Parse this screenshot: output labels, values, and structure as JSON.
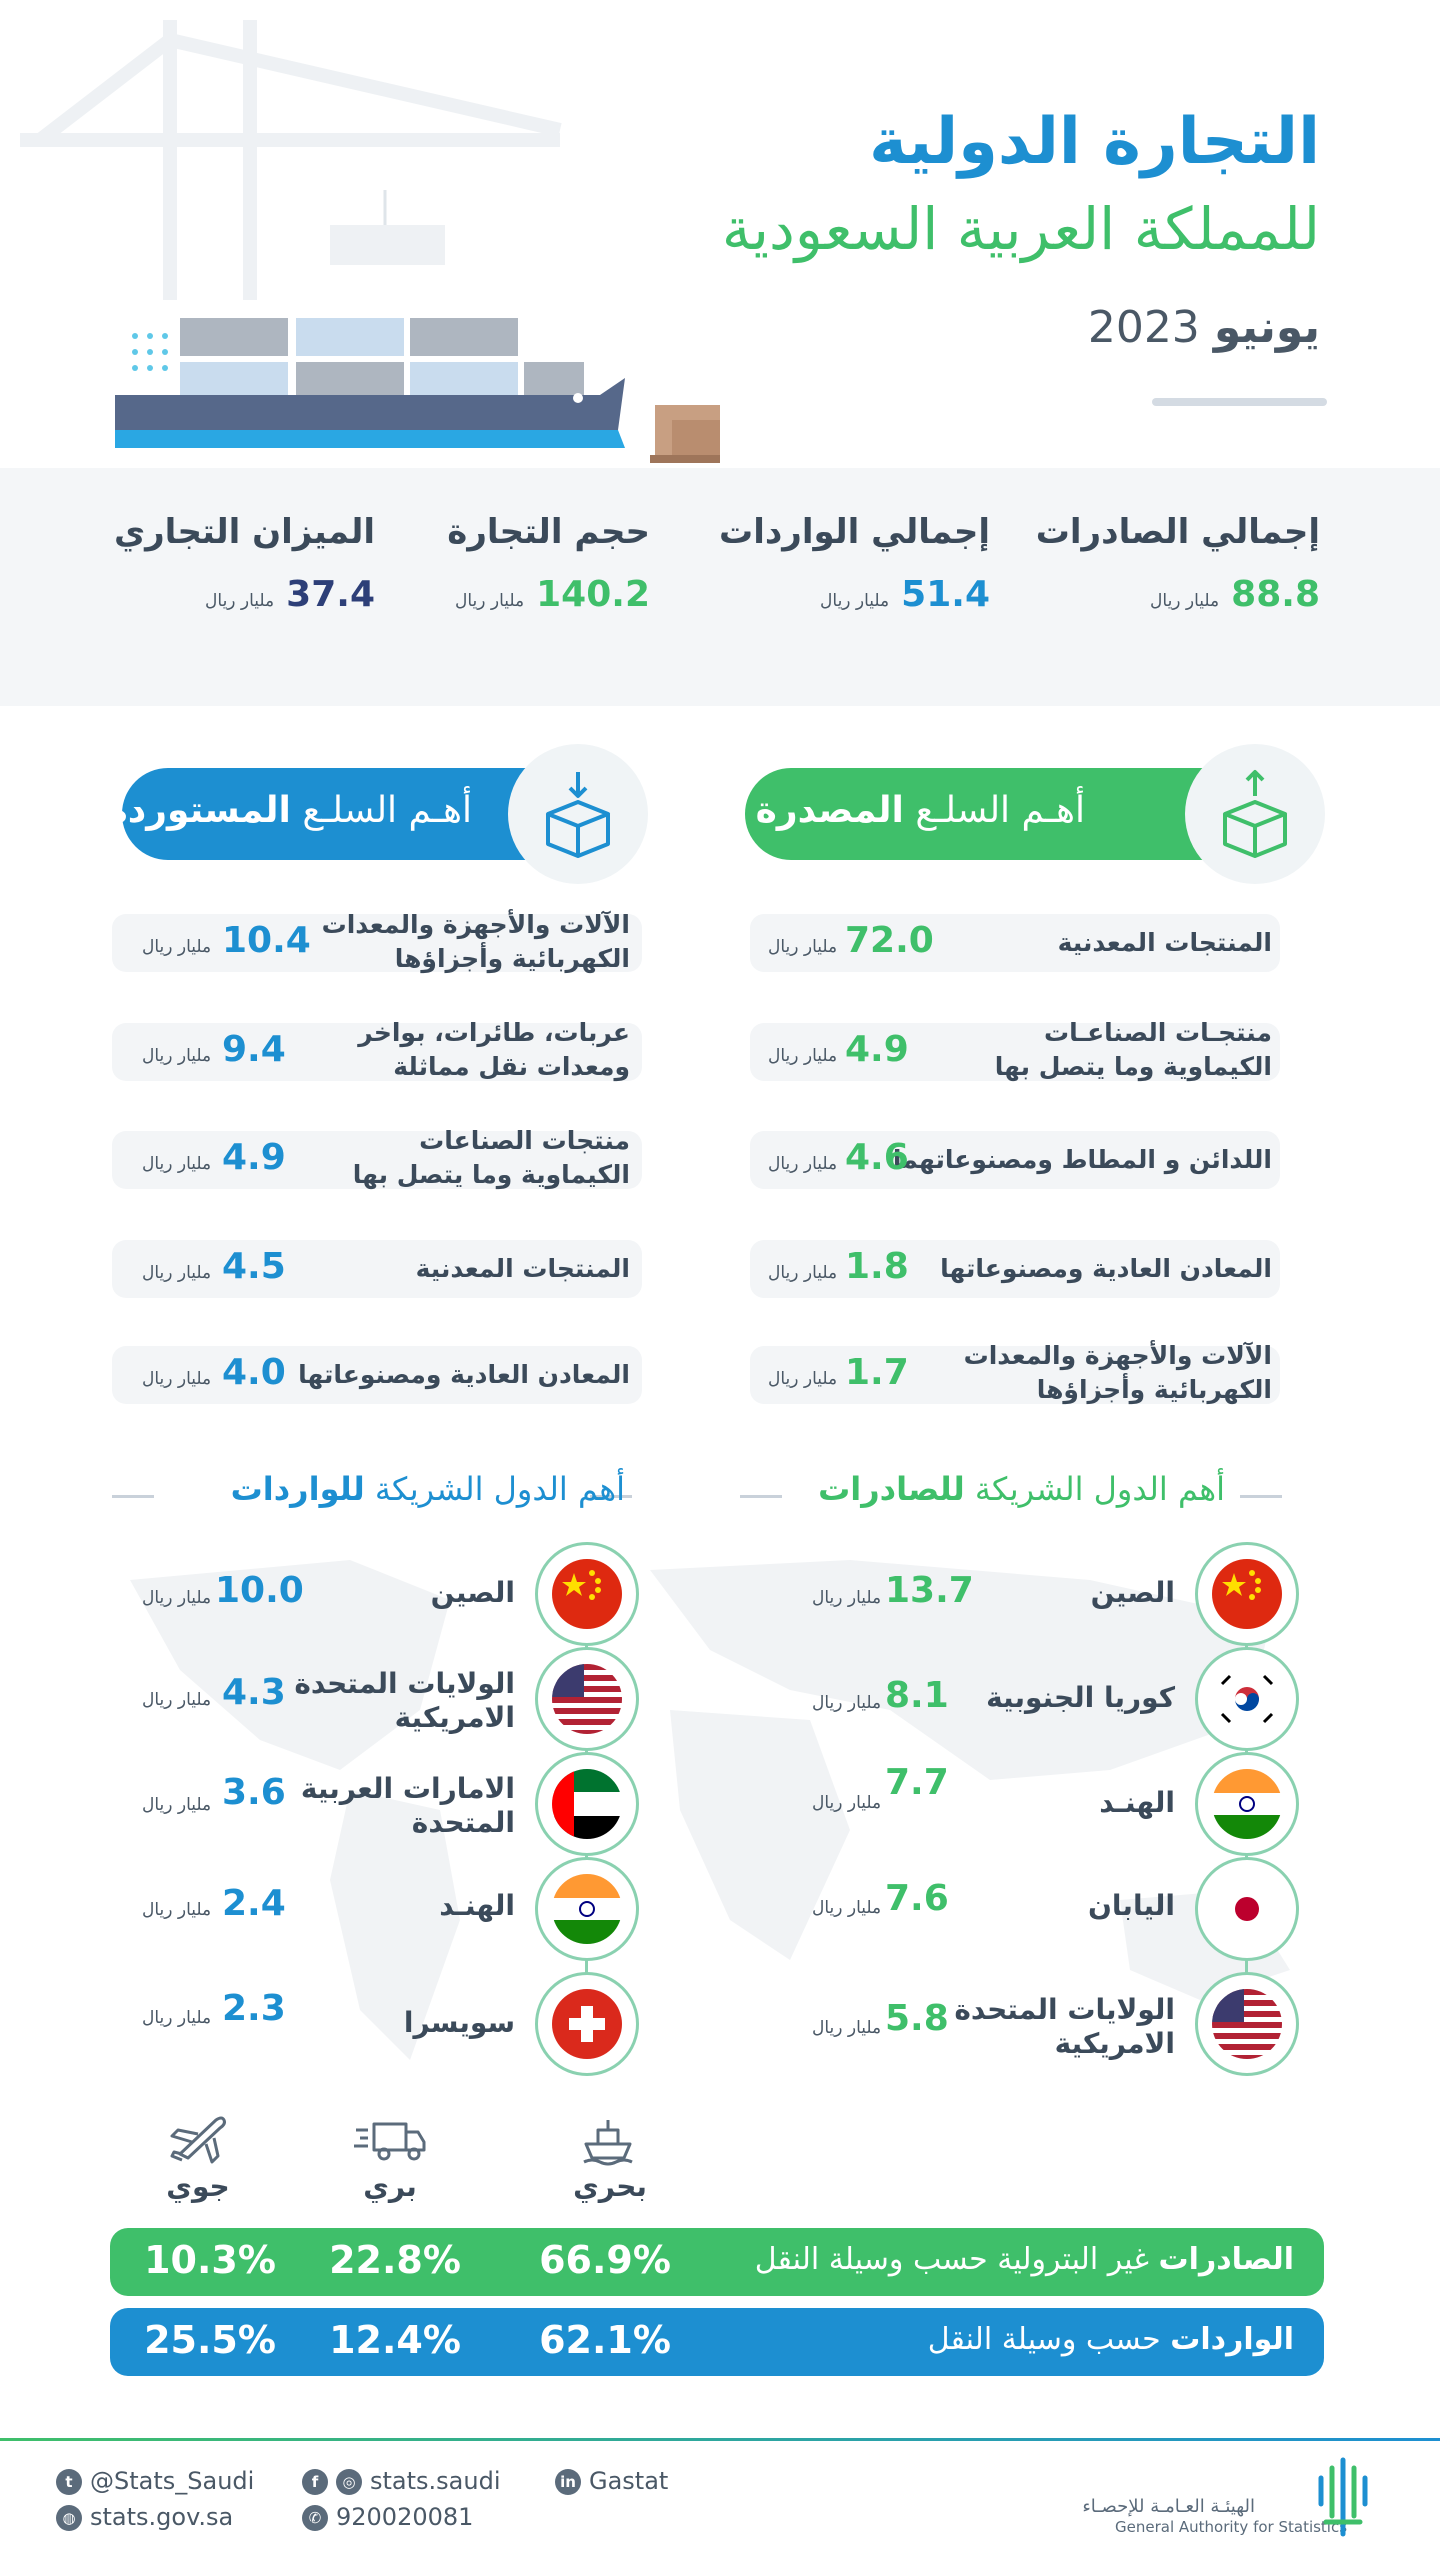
{
  "header": {
    "title_line1": "التجارة الدولية",
    "title_line2": "للمملكة العربية السعودية",
    "date_month": "يونيو",
    "date_year": "2023"
  },
  "summary": [
    {
      "label": "إجمالي الصادرات",
      "value": "88.8",
      "unit": "مليار ريال",
      "color": "#3fbf6a"
    },
    {
      "label": "إجمالي الواردات",
      "value": "51.4",
      "unit": "مليار ريال",
      "color": "#1d8fd1"
    },
    {
      "label": "حجم التجارة",
      "value": "140.2",
      "unit": "مليار ريال",
      "color": "#3fbf6a"
    },
    {
      "label": "الميزان التجاري",
      "value": "37.4",
      "unit": "مليار ريال",
      "color": "#2d3f78"
    }
  ],
  "exports_goods": {
    "title_prefix": "أهـم السلـع",
    "title_bold": "المصدرة",
    "items": [
      {
        "name": "المنتجات المعدنية",
        "value": "72.0",
        "unit": "مليار ريال"
      },
      {
        "name": "منتجـات الصناعـات\nالكيماوية وما يتصل بها",
        "value": "4.9",
        "unit": "مليار ريال"
      },
      {
        "name": "اللدائن و المطاط ومصنوعاتهما",
        "value": "4.6",
        "unit": "مليار ريال"
      },
      {
        "name": "المعادن العادية ومصنوعاتها",
        "value": "1.8",
        "unit": "مليار ريال"
      },
      {
        "name": "الآلات والأجهزة والمعدات\nالكهربائية وأجزاؤها",
        "value": "1.7",
        "unit": "مليار ريال"
      }
    ]
  },
  "imports_goods": {
    "title_prefix": "أهـم السلـع",
    "title_bold": "المستوردة",
    "items": [
      {
        "name": "الآلات والأجهزة والمعدات\nالكهربائية وأجزاؤها",
        "value": "10.4",
        "unit": "مليار ريال"
      },
      {
        "name": "عربات، طائرات، بواخر\nومعدات نقل مماثلة",
        "value": "9.4",
        "unit": "مليار ريال"
      },
      {
        "name": "منتجات الصناعات\nالكيماوية وما يتصل بها",
        "value": "4.9",
        "unit": "مليار ريال"
      },
      {
        "name": "المنتجات المعدنية",
        "value": "4.5",
        "unit": "مليار ريال"
      },
      {
        "name": "المعادن العادية ومصنوعاتها",
        "value": "4.0",
        "unit": "مليار ريال"
      }
    ]
  },
  "export_partners": {
    "title_prefix": "أهم الدول الشريكة",
    "title_bold": "للصادرات",
    "items": [
      {
        "country": "الصين",
        "value": "13.7",
        "unit": "مليار ريال",
        "flag": "china-flag-icon"
      },
      {
        "country": "كوريا الجنوبية",
        "value": "8.1",
        "unit": "مليار ريال",
        "flag": "south-korea-flag-icon"
      },
      {
        "country": "الهنـد",
        "value": "7.7",
        "unit": "مليار ريال",
        "flag": "india-flag-icon"
      },
      {
        "country": "اليابان",
        "value": "7.6",
        "unit": "مليار ريال",
        "flag": "japan-flag-icon"
      },
      {
        "country": "الولايات المتحدة\nالامريكية",
        "value": "5.8",
        "unit": "مليار ريال",
        "flag": "usa-flag-icon"
      }
    ]
  },
  "import_partners": {
    "title_prefix": "أهم الدول الشريكة",
    "title_bold": "للواردات",
    "items": [
      {
        "country": "الصين",
        "value": "10.0",
        "unit": "مليار ريال",
        "flag": "china-flag-icon"
      },
      {
        "country": "الولايات المتحدة\nالامريكية",
        "value": "4.3",
        "unit": "مليار ريال",
        "flag": "usa-flag-icon"
      },
      {
        "country": "الامارات العربية\nالمتحدة",
        "value": "3.6",
        "unit": "مليار ريال",
        "flag": "uae-flag-icon"
      },
      {
        "country": "الهنـد",
        "value": "2.4",
        "unit": "مليار ريال",
        "flag": "india-flag-icon"
      },
      {
        "country": "سويسرا",
        "value": "2.3",
        "unit": "مليار ريال",
        "flag": "switzerland-flag-icon"
      }
    ]
  },
  "transport": {
    "modes": [
      {
        "label": "بحري",
        "icon": "ship-icon"
      },
      {
        "label": "بري",
        "icon": "truck-icon"
      },
      {
        "label": "جوي",
        "icon": "plane-icon"
      }
    ],
    "exports_bar": {
      "title_bold": "الصادرات",
      "title_rest": "غير البترولية حسب وسيلة النقل",
      "sea": "66.9%",
      "land": "22.8%",
      "air": "10.3%",
      "color": "#3fbf6a"
    },
    "imports_bar": {
      "title_bold": "الواردات",
      "title_rest": "حسب وسيلة النقل",
      "sea": "62.1%",
      "land": "12.4%",
      "air": "25.5%",
      "color": "#1d8fd1"
    }
  },
  "footer": {
    "twitter": "@Stats_Saudi",
    "website": "stats.gov.sa",
    "social": "stats.saudi",
    "phone": "920020081",
    "linkedin": "Gastat",
    "org_ar": "الهيئـة العـامـة للإحصـاء",
    "org_en": "General Authority for Statistics"
  }
}
